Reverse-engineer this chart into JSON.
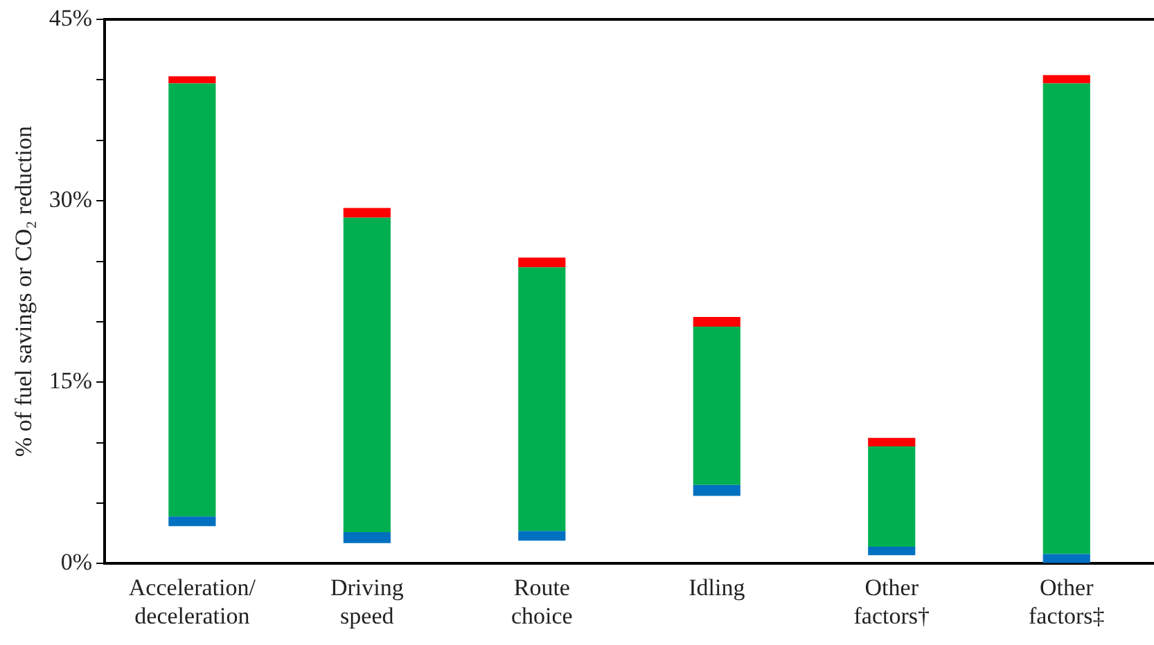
{
  "chart_data": {
    "type": "bar",
    "ylabel": "% of fuel savings or CO₂ reduction",
    "categories": [
      "Acceleration/\ndeceleration",
      "Driving\nspeed",
      "Route\nchoice",
      "Idling",
      "Other\nfactors†",
      "Other\nfactors‡"
    ],
    "series": [
      {
        "color": "#0070c0",
        "base": [
          3.1,
          1.7,
          1.9,
          5.6,
          0.7,
          0
        ],
        "values": [
          0.8,
          0.9,
          0.8,
          0.9,
          0.7,
          0.8
        ]
      },
      {
        "color": "#00b050",
        "base": [
          3.9,
          2.6,
          2.7,
          6.5,
          1.4,
          0.8
        ],
        "values": [
          35.8,
          26.0,
          21.8,
          13.1,
          8.3,
          38.9
        ]
      },
      {
        "color": "#ff0000",
        "base": [
          39.7,
          28.6,
          24.5,
          19.6,
          9.7,
          39.7
        ],
        "values": [
          0.6,
          0.8,
          0.8,
          0.8,
          0.7,
          0.7
        ]
      }
    ],
    "ylim": [
      0,
      45
    ],
    "yticks": [
      {
        "value": 0,
        "label": "0%"
      },
      {
        "value": 5,
        "label": null
      },
      {
        "value": 10,
        "label": null
      },
      {
        "value": 15,
        "label": "15%"
      },
      {
        "value": 20,
        "label": null
      },
      {
        "value": 25,
        "label": null
      },
      {
        "value": 30,
        "label": "30%"
      },
      {
        "value": 35,
        "label": null
      },
      {
        "value": 40,
        "label": null
      },
      {
        "value": 45,
        "label": "45%"
      }
    ],
    "grid": false,
    "legend": false
  }
}
